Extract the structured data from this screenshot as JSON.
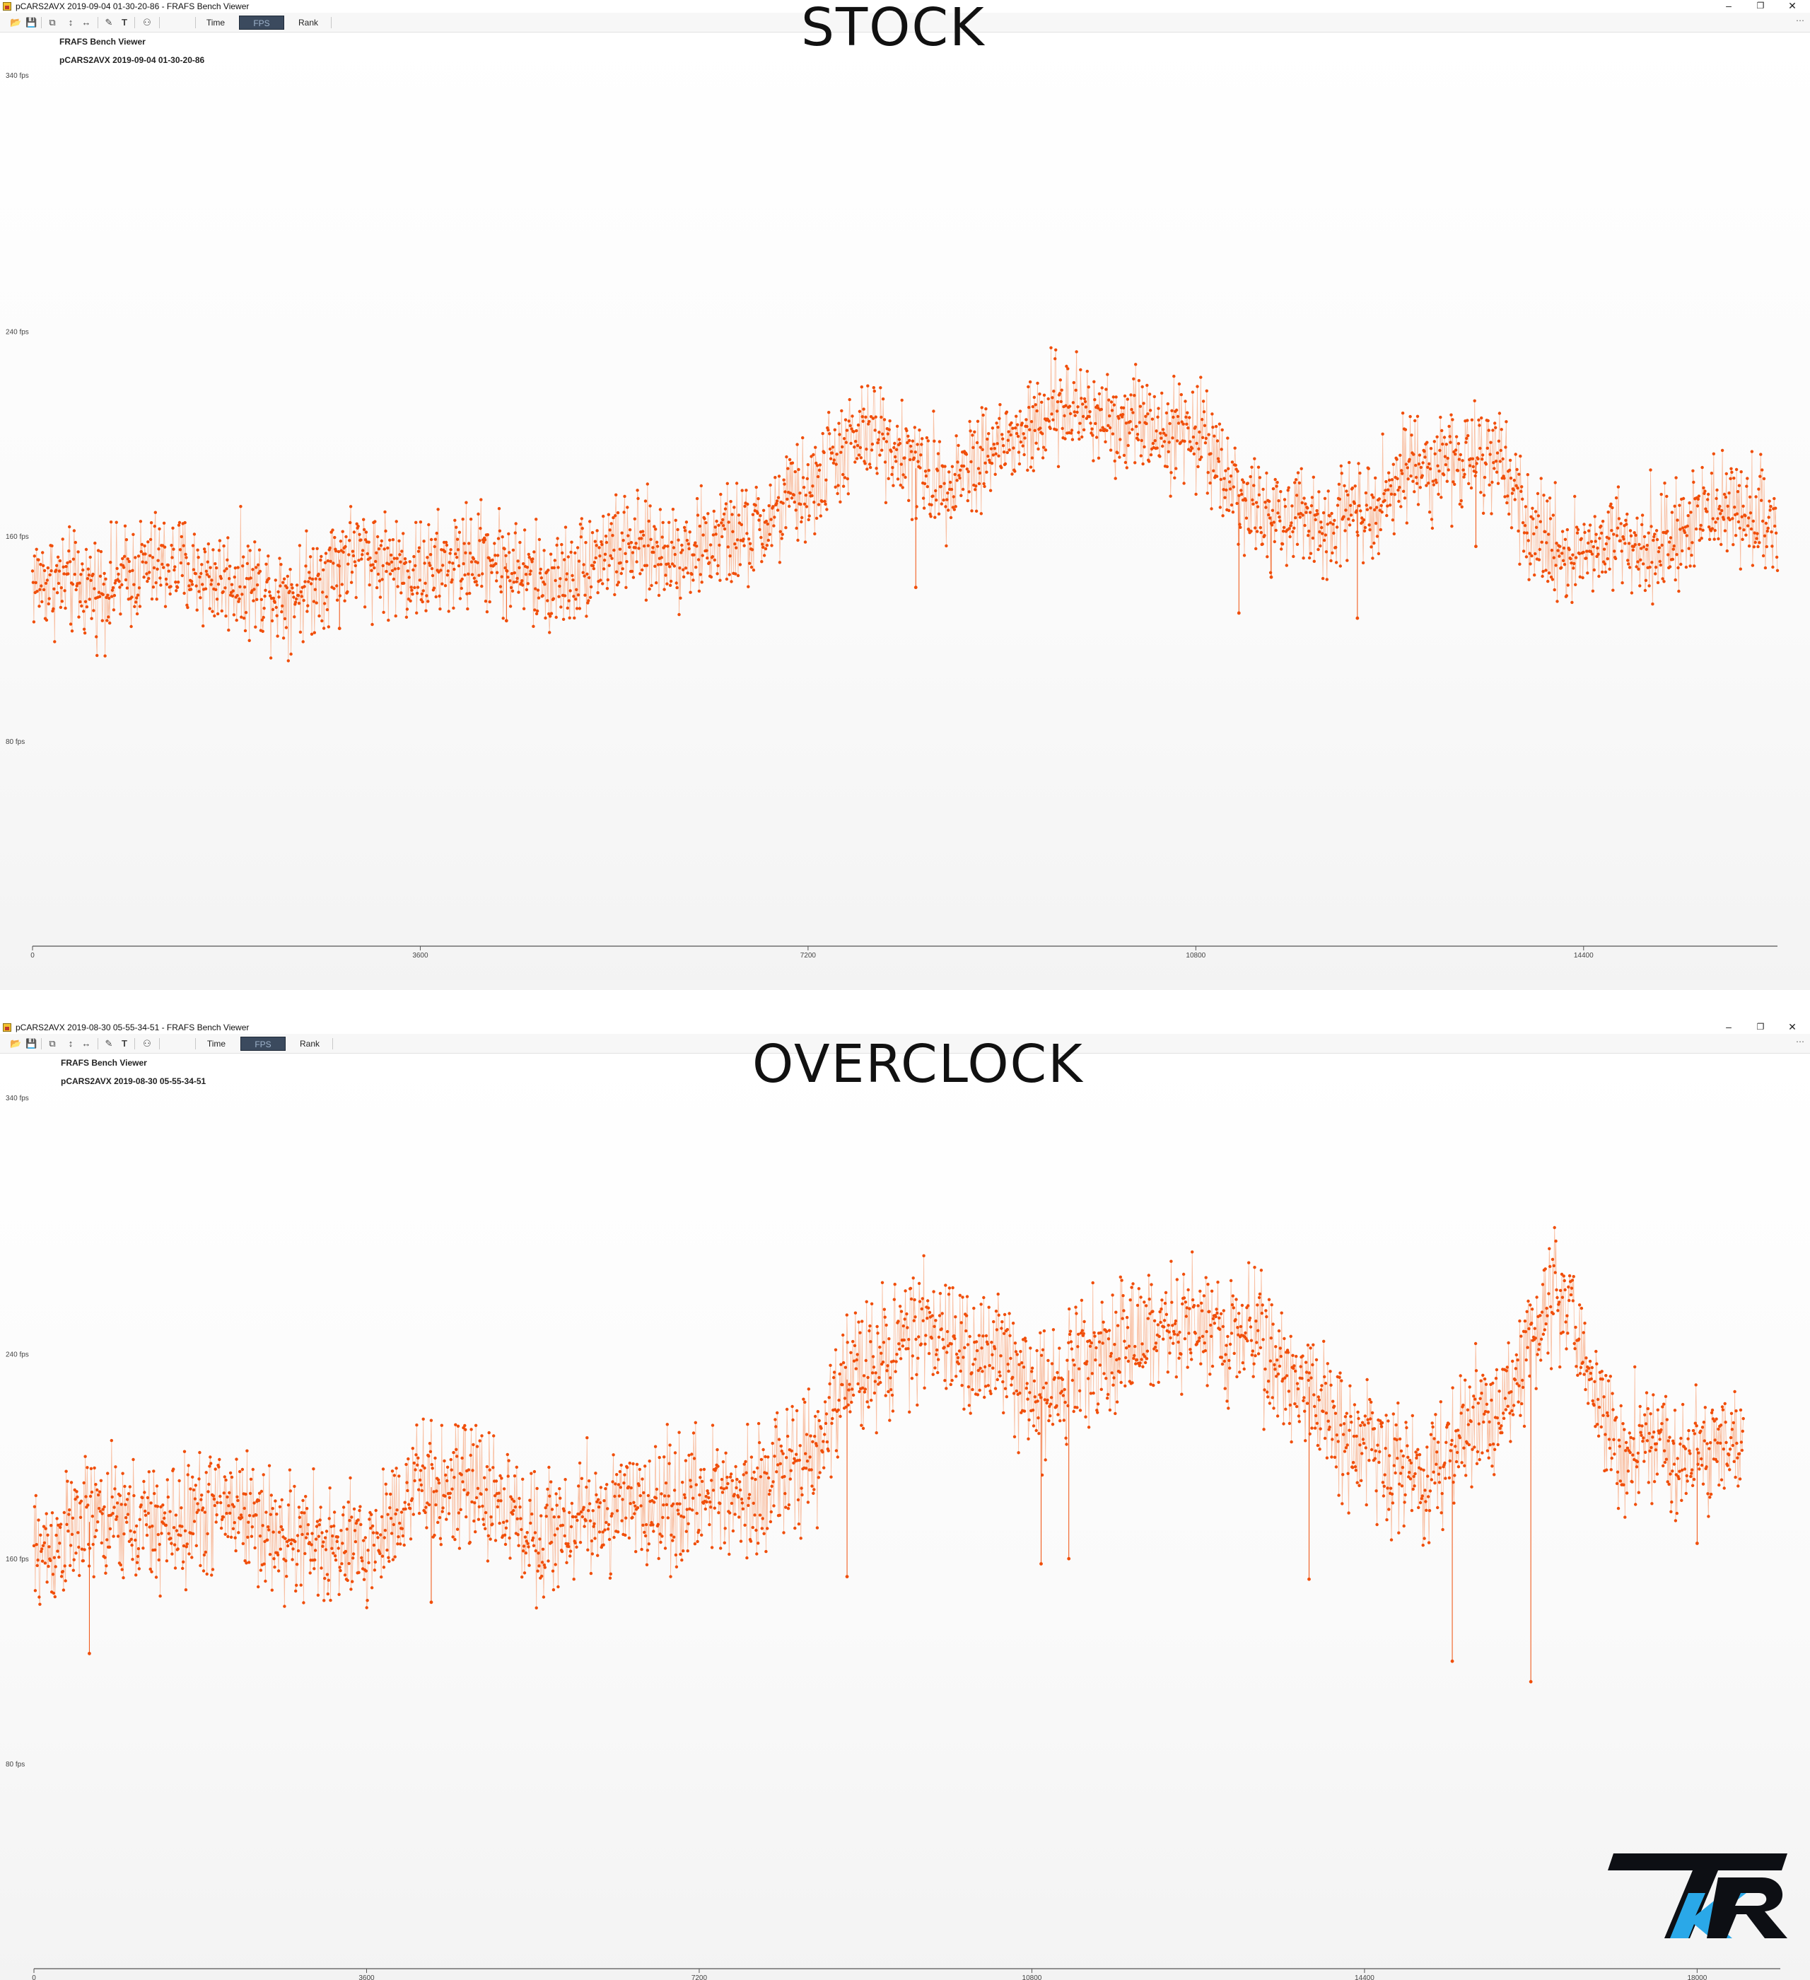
{
  "windows": [
    {
      "title": "pCARS2AVX 2019-09-04 01-30-20-86 - FRAFS Bench Viewer",
      "tabs": [
        "Time",
        "FPS",
        "Rank"
      ],
      "active_tab": "FPS",
      "plot_title": "FRAFS Bench Viewer",
      "plot_subtitle": "pCARS2AVX 2019-09-04 01-30-20-86",
      "overlay_label": "STOCK",
      "controls": {
        "minimize": "–",
        "restore": "❐",
        "close": "✕"
      }
    },
    {
      "title": "pCARS2AVX 2019-08-30 05-55-34-51 - FRAFS Bench Viewer",
      "tabs": [
        "Time",
        "FPS",
        "Rank"
      ],
      "active_tab": "FPS",
      "plot_title": "FRAFS Bench Viewer",
      "plot_subtitle": "pCARS2AVX 2019-08-30 05-55-34-51",
      "overlay_label": "OVERCLOCK",
      "controls": {
        "minimize": "–",
        "restore": "❐",
        "close": "✕"
      }
    }
  ],
  "logo": {
    "text": "TKR",
    "colors": {
      "dark": "#0d0f14",
      "accent": "#2aa8e8"
    }
  },
  "colors": {
    "series": "#f04e0a",
    "series_light": "#f7b08c",
    "axis": "#555555"
  },
  "chart_data": [
    {
      "type": "scatter",
      "ylim": [
        0,
        340
      ],
      "yticks": [
        80,
        160,
        240,
        340
      ],
      "ytick_labels": [
        "80 fps",
        "160 fps",
        "240 fps",
        "340 fps"
      ],
      "xlim": [
        0,
        16200
      ],
      "xticks": [
        0,
        3600,
        7200,
        10800,
        14400
      ],
      "xtick_labels": [
        "0",
        "3600",
        "7200",
        "10800",
        "14400"
      ],
      "grid": false,
      "series": [
        {
          "x": [
            0,
            600,
            1200,
            1800,
            2400,
            3000,
            3600,
            4200,
            4800,
            5400,
            6000,
            6600,
            7200,
            7500,
            7800,
            8400,
            9000,
            9600,
            10200,
            10800,
            11400,
            11900,
            12400,
            12900,
            13500,
            14000,
            14300,
            14700,
            15200,
            15700,
            16200
          ],
          "values": [
            143,
            140,
            149,
            143,
            138,
            153,
            146,
            152,
            142,
            155,
            154,
            160,
            177,
            193,
            200,
            182,
            195,
            210,
            205,
            200,
            168,
            165,
            173,
            189,
            190,
            159,
            153,
            159,
            158,
            172,
            166
          ],
          "spread": 10,
          "dips": [
            [
              2850,
              124
            ],
            [
              4400,
              127
            ],
            [
              8200,
              140
            ],
            [
              11200,
              130
            ],
            [
              11500,
              144
            ],
            [
              12300,
              128
            ],
            [
              13400,
              156
            ]
          ]
        }
      ]
    },
    {
      "type": "scatter",
      "ylim": [
        0,
        340
      ],
      "yticks": [
        80,
        160,
        240,
        340
      ],
      "ytick_labels": [
        "80 fps",
        "160 fps",
        "240 fps",
        "340 fps"
      ],
      "xlim": [
        0,
        18900
      ],
      "xticks": [
        0,
        3600,
        7200,
        10800,
        14400,
        18000
      ],
      "xtick_labels": [
        "0",
        "3600",
        "7200",
        "10800",
        "14400",
        "18000"
      ],
      "grid": false,
      "series": [
        {
          "x": [
            0,
            700,
            1400,
            2100,
            2800,
            3500,
            4200,
            4800,
            5500,
            6200,
            6900,
            7600,
            8300,
            9000,
            9600,
            10400,
            10800,
            11600,
            12400,
            13100,
            13600,
            14300,
            15000,
            15800,
            16500,
            17200,
            17800,
            18500
          ],
          "values": [
            162,
            175,
            172,
            181,
            167,
            162,
            188,
            187,
            170,
            178,
            182,
            186,
            195,
            238,
            247,
            240,
            224,
            243,
            250,
            250,
            232,
            206,
            191,
            220,
            262,
            203,
            202,
            203
          ],
          "spread": 12,
          "dips": [
            [
              600,
              123
            ],
            [
              4300,
              143
            ],
            [
              8800,
              153
            ],
            [
              10900,
              158
            ],
            [
              11200,
              160
            ],
            [
              13800,
              152
            ],
            [
              15350,
              120
            ],
            [
              16200,
              112
            ],
            [
              18000,
              166
            ]
          ]
        }
      ]
    }
  ]
}
